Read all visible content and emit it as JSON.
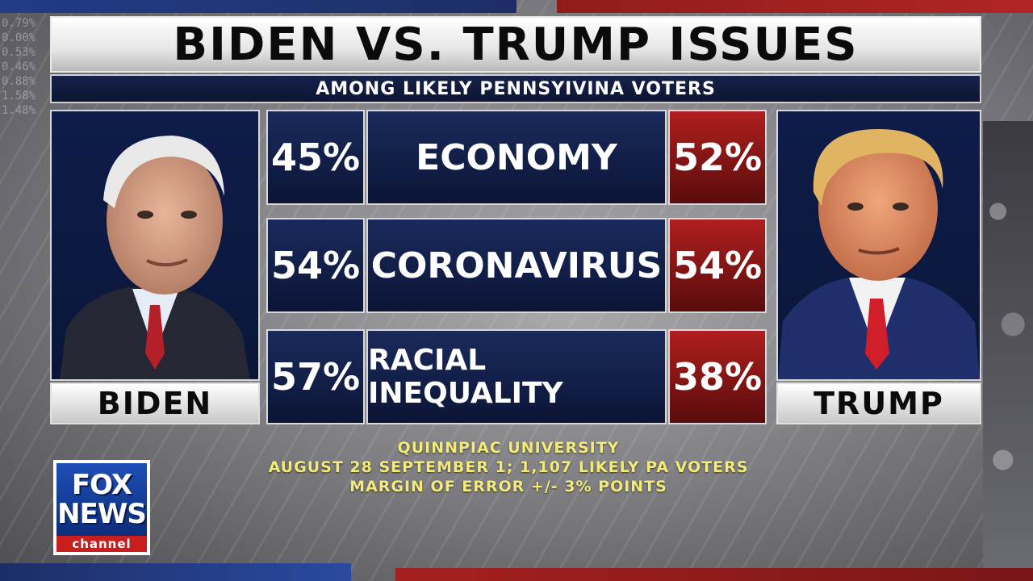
{
  "graphic": {
    "title": "BIDEN VS. TRUMP ISSUES",
    "subtitle": "AMONG LIKELY PENNSYIVINA VOTERS"
  },
  "candidates": {
    "left": {
      "name": "BIDEN"
    },
    "right": {
      "name": "TRUMP"
    }
  },
  "issues": [
    {
      "issue": "ECONOMY",
      "biden": "45%",
      "trump": "52%"
    },
    {
      "issue": "CORONAVIRUS",
      "biden": "54%",
      "trump": "54%"
    },
    {
      "issue": "RACIAL INEQUALITY",
      "biden": "57%",
      "trump": "38%"
    }
  ],
  "source": {
    "line1": "QUINNPIAC UNIVERSITY",
    "line2": "AUGUST 28 SEPTEMBER 1; 1,107 LIKELY PA VOTERS",
    "line3": "MARGIN OF ERROR +/- 3% POINTS"
  },
  "logo": {
    "fox": "FOX",
    "news": "NEWS",
    "channel": "channel"
  },
  "background_ticker": [
    "0.79%",
    "0.00%",
    "0.53%",
    "0.46%",
    "0.88%",
    "1.58%",
    "1.48%"
  ],
  "colors": {
    "navy": "#0c1533",
    "red": "#b01f1f",
    "source_yellow": "#f2ea79"
  }
}
